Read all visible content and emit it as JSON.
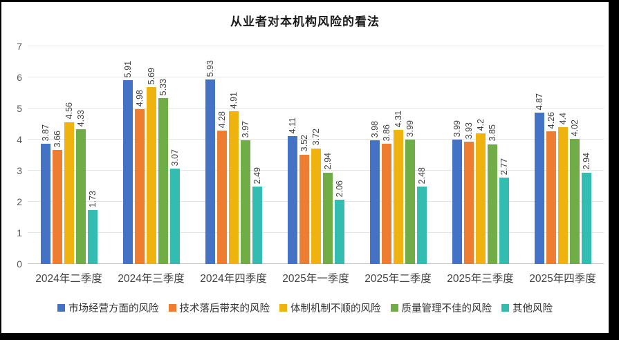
{
  "title": "从业者对本机构风险的看法",
  "chart_data": {
    "type": "bar",
    "title": "从业者对本机构风险的看法",
    "categories": [
      "2024年二季度",
      "2024年三季度",
      "2024年四季度",
      "2025年一季度",
      "2025年二季度",
      "2025年三季度",
      "2025年四季度"
    ],
    "series": [
      {
        "name": "市场经营方面的风险",
        "color": "#4472C4",
        "values": [
          3.87,
          5.91,
          5.93,
          4.11,
          3.98,
          3.99,
          4.87
        ]
      },
      {
        "name": "技术落后带来的风险",
        "color": "#ED7D31",
        "values": [
          3.66,
          4.98,
          4.28,
          3.52,
          3.86,
          3.93,
          4.26
        ]
      },
      {
        "name": "体制机制不顺的风险",
        "color": "#EFB310",
        "values": [
          4.56,
          5.69,
          4.91,
          3.72,
          4.31,
          4.2,
          4.4
        ]
      },
      {
        "name": "质量管理不佳的风险",
        "color": "#70AD47",
        "values": [
          4.33,
          5.33,
          3.97,
          2.94,
          3.99,
          3.85,
          4.02
        ]
      },
      {
        "name": "其他风险",
        "color": "#33BDB0",
        "values": [
          1.73,
          3.07,
          2.49,
          2.06,
          2.48,
          2.77,
          2.94
        ]
      }
    ],
    "ylim": [
      0,
      7
    ],
    "y_ticks": [
      0,
      1,
      2,
      3,
      4,
      5,
      6,
      7
    ],
    "xlabel": "",
    "ylabel": "",
    "grid": "horizontal",
    "legend_position": "bottom",
    "data_labels": "rotated-vertical",
    "gridline_color": "#E2E6E8"
  }
}
